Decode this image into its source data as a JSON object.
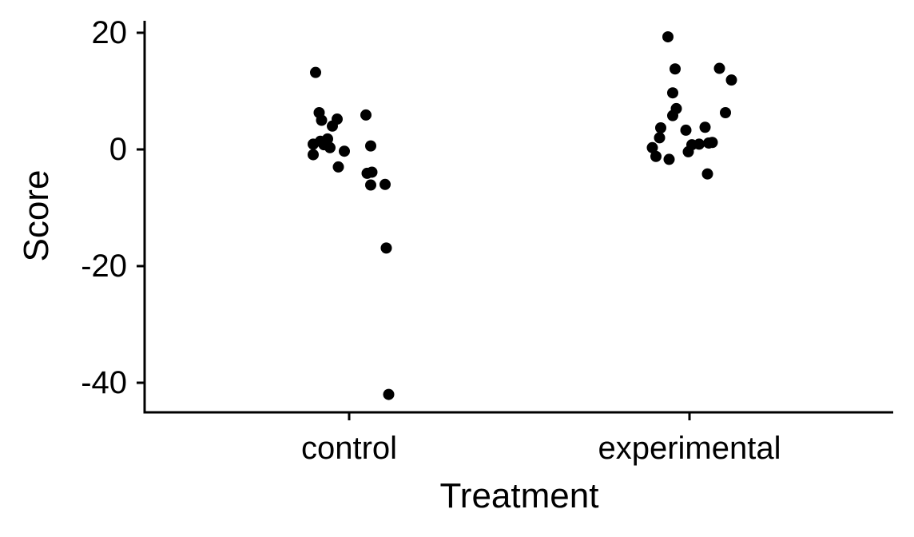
{
  "chart_data": {
    "type": "scatter",
    "title": "",
    "xlabel": "Treatment",
    "ylabel": "Score",
    "categories": [
      "control",
      "experimental"
    ],
    "ylim": [
      -45,
      22
    ],
    "yticks": [
      20,
      0,
      -20,
      -40
    ],
    "ytick_labels": [
      "20",
      "0",
      "-20",
      "-40"
    ],
    "grid": false,
    "point_color": "#000000",
    "axis_color": "#000000",
    "series": [
      {
        "category": "control",
        "points": [
          {
            "x": "control",
            "jitter": -0.28,
            "y": 13.2
          },
          {
            "x": "control",
            "jitter": -0.25,
            "y": 6.3
          },
          {
            "x": "control",
            "jitter": -0.23,
            "y": 5.0
          },
          {
            "x": "control",
            "jitter": -0.1,
            "y": 5.2
          },
          {
            "x": "control",
            "jitter": -0.14,
            "y": 4.0
          },
          {
            "x": "control",
            "jitter": 0.14,
            "y": 5.9
          },
          {
            "x": "control",
            "jitter": -0.24,
            "y": 1.4
          },
          {
            "x": "control",
            "jitter": -0.18,
            "y": 1.8
          },
          {
            "x": "control",
            "jitter": -0.3,
            "y": 0.9
          },
          {
            "x": "control",
            "jitter": -0.21,
            "y": 0.8
          },
          {
            "x": "control",
            "jitter": -0.16,
            "y": 0.3
          },
          {
            "x": "control",
            "jitter": 0.18,
            "y": 0.6
          },
          {
            "x": "control",
            "jitter": -0.04,
            "y": -0.3
          },
          {
            "x": "control",
            "jitter": -0.3,
            "y": -0.9
          },
          {
            "x": "control",
            "jitter": -0.09,
            "y": -3.0
          },
          {
            "x": "control",
            "jitter": 0.15,
            "y": -4.1
          },
          {
            "x": "control",
            "jitter": 0.19,
            "y": -3.9
          },
          {
            "x": "control",
            "jitter": 0.18,
            "y": -6.1
          },
          {
            "x": "control",
            "jitter": 0.3,
            "y": -6.0
          },
          {
            "x": "control",
            "jitter": 0.31,
            "y": -16.9
          },
          {
            "x": "control",
            "jitter": 0.33,
            "y": -42.0
          }
        ]
      },
      {
        "category": "experimental",
        "points": [
          {
            "x": "experimental",
            "jitter": -0.18,
            "y": 19.3
          },
          {
            "x": "experimental",
            "jitter": -0.12,
            "y": 13.8
          },
          {
            "x": "experimental",
            "jitter": 0.25,
            "y": 13.9
          },
          {
            "x": "experimental",
            "jitter": 0.35,
            "y": 11.9
          },
          {
            "x": "experimental",
            "jitter": -0.14,
            "y": 9.7
          },
          {
            "x": "experimental",
            "jitter": -0.11,
            "y": 7.0
          },
          {
            "x": "experimental",
            "jitter": 0.3,
            "y": 6.3
          },
          {
            "x": "experimental",
            "jitter": -0.14,
            "y": 5.8
          },
          {
            "x": "experimental",
            "jitter": -0.24,
            "y": 3.7
          },
          {
            "x": "experimental",
            "jitter": -0.03,
            "y": 3.3
          },
          {
            "x": "experimental",
            "jitter": 0.13,
            "y": 3.8
          },
          {
            "x": "experimental",
            "jitter": -0.25,
            "y": 2.0
          },
          {
            "x": "experimental",
            "jitter": 0.02,
            "y": 0.8
          },
          {
            "x": "experimental",
            "jitter": 0.08,
            "y": 0.9
          },
          {
            "x": "experimental",
            "jitter": 0.16,
            "y": 1.1
          },
          {
            "x": "experimental",
            "jitter": 0.19,
            "y": 1.2
          },
          {
            "x": "experimental",
            "jitter": -0.31,
            "y": 0.3
          },
          {
            "x": "experimental",
            "jitter": -0.01,
            "y": -0.4
          },
          {
            "x": "experimental",
            "jitter": -0.28,
            "y": -1.2
          },
          {
            "x": "experimental",
            "jitter": -0.17,
            "y": -1.7
          },
          {
            "x": "experimental",
            "jitter": 0.15,
            "y": -4.2
          }
        ]
      }
    ]
  }
}
